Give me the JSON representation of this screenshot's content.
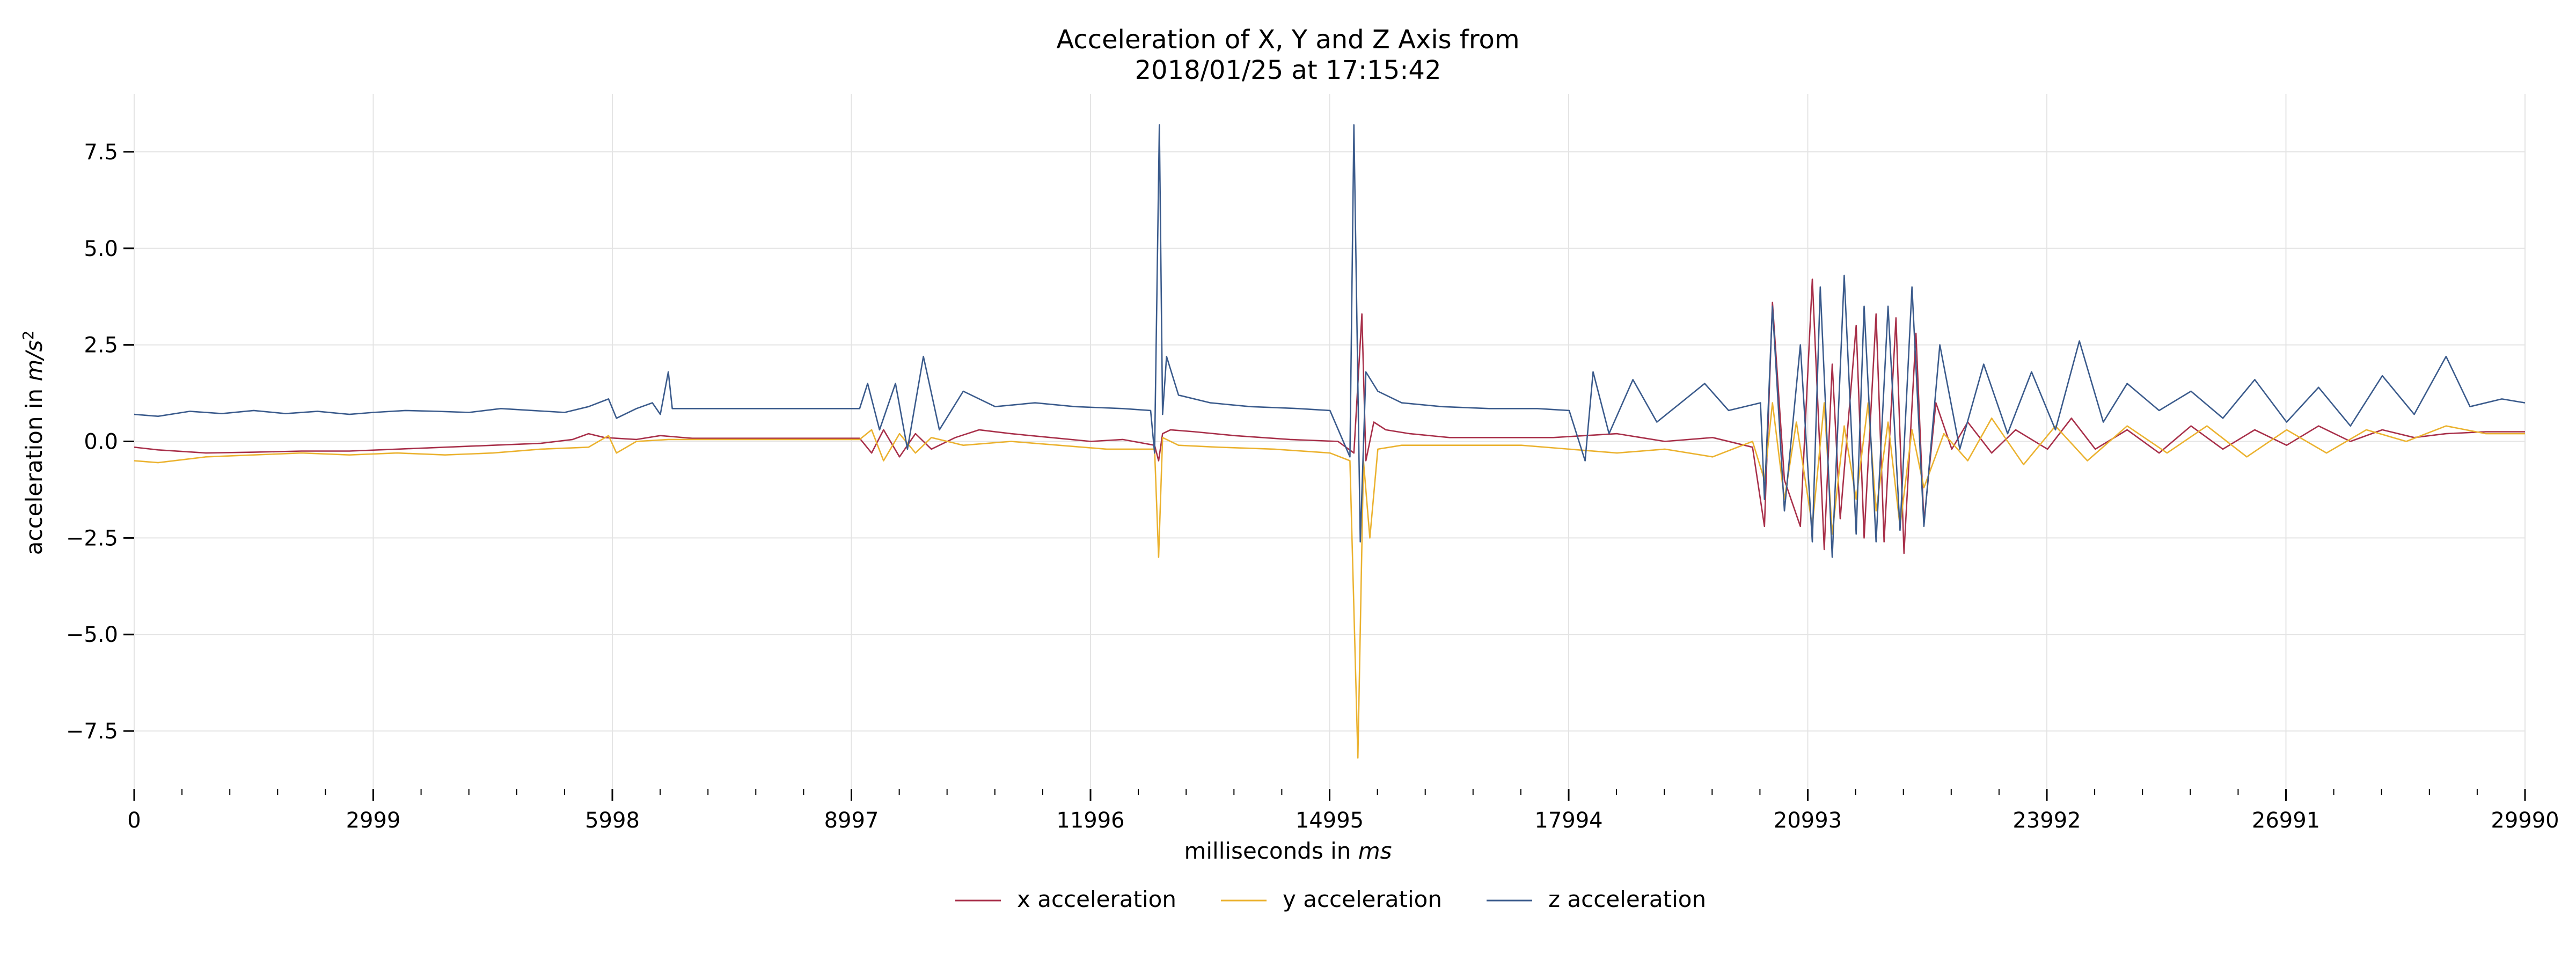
{
  "chart_data": {
    "type": "line",
    "title_lines": [
      "Acceleration of X, Y and Z Axis from",
      "2018/01/25 at 17:15:42"
    ],
    "xlabel_prefix": "milliseconds in ",
    "xlabel_unit": "ms",
    "ylabel_prefix": "acceleration in ",
    "ylabel_unit": "m/s",
    "ylabel_exponent": "2",
    "xlim": [
      0,
      29990
    ],
    "ylim": [
      -9,
      9
    ],
    "x_ticks": [
      0,
      2999,
      5998,
      8997,
      11996,
      14995,
      17994,
      20993,
      23992,
      26991,
      29990
    ],
    "x_tick_labels": [
      "0",
      "2999",
      "5998",
      "8997",
      "11996",
      "14995",
      "17994",
      "20993",
      "23992",
      "26991",
      "29990"
    ],
    "y_ticks": [
      -7.5,
      -5.0,
      -2.5,
      0.0,
      2.5,
      5.0,
      7.5
    ],
    "y_tick_labels": [
      "−7.5",
      "−5.0",
      "−2.5",
      "0.0",
      "2.5",
      "5.0",
      "7.5"
    ],
    "grid": true,
    "legend_position": "bottom-center",
    "series": [
      {
        "name": "x acceleration",
        "color": "#a8304a",
        "points": [
          [
            0,
            -0.15
          ],
          [
            300,
            -0.22
          ],
          [
            900,
            -0.3
          ],
          [
            1500,
            -0.28
          ],
          [
            2100,
            -0.25
          ],
          [
            2700,
            -0.25
          ],
          [
            3300,
            -0.2
          ],
          [
            3900,
            -0.15
          ],
          [
            4500,
            -0.1
          ],
          [
            5100,
            -0.05
          ],
          [
            5500,
            0.05
          ],
          [
            5700,
            0.2
          ],
          [
            5900,
            0.1
          ],
          [
            6300,
            0.05
          ],
          [
            6600,
            0.15
          ],
          [
            7000,
            0.08
          ],
          [
            8000,
            0.08
          ],
          [
            9100,
            0.08
          ],
          [
            9250,
            -0.3
          ],
          [
            9400,
            0.3
          ],
          [
            9600,
            -0.4
          ],
          [
            9800,
            0.2
          ],
          [
            10000,
            -0.2
          ],
          [
            10300,
            0.1
          ],
          [
            10600,
            0.3
          ],
          [
            11000,
            0.2
          ],
          [
            11500,
            0.1
          ],
          [
            12000,
            0.0
          ],
          [
            12400,
            0.05
          ],
          [
            12800,
            -0.1
          ],
          [
            12850,
            -0.5
          ],
          [
            12900,
            0.2
          ],
          [
            13000,
            0.3
          ],
          [
            13300,
            0.25
          ],
          [
            13800,
            0.15
          ],
          [
            14500,
            0.05
          ],
          [
            15100,
            0.0
          ],
          [
            15300,
            -0.3
          ],
          [
            15400,
            3.3
          ],
          [
            15450,
            -0.5
          ],
          [
            15550,
            0.5
          ],
          [
            15700,
            0.3
          ],
          [
            16000,
            0.2
          ],
          [
            16500,
            0.1
          ],
          [
            17200,
            0.1
          ],
          [
            17800,
            0.1
          ],
          [
            18200,
            0.15
          ],
          [
            18600,
            0.2
          ],
          [
            19200,
            0.0
          ],
          [
            19800,
            0.1
          ],
          [
            20300,
            -0.15
          ],
          [
            20450,
            -2.2
          ],
          [
            20550,
            3.6
          ],
          [
            20700,
            -1.0
          ],
          [
            20900,
            -2.2
          ],
          [
            21050,
            4.2
          ],
          [
            21200,
            -2.8
          ],
          [
            21300,
            2.0
          ],
          [
            21400,
            -2.0
          ],
          [
            21600,
            3.0
          ],
          [
            21700,
            -2.5
          ],
          [
            21850,
            3.3
          ],
          [
            21950,
            -2.6
          ],
          [
            22100,
            3.2
          ],
          [
            22200,
            -2.9
          ],
          [
            22350,
            2.8
          ],
          [
            22450,
            -2.1
          ],
          [
            22600,
            1.0
          ],
          [
            22800,
            -0.2
          ],
          [
            23000,
            0.5
          ],
          [
            23300,
            -0.3
          ],
          [
            23600,
            0.3
          ],
          [
            24000,
            -0.2
          ],
          [
            24300,
            0.6
          ],
          [
            24600,
            -0.2
          ],
          [
            25000,
            0.3
          ],
          [
            25400,
            -0.3
          ],
          [
            25800,
            0.4
          ],
          [
            26200,
            -0.2
          ],
          [
            26600,
            0.3
          ],
          [
            27000,
            -0.1
          ],
          [
            27400,
            0.4
          ],
          [
            27800,
            0.0
          ],
          [
            28200,
            0.3
          ],
          [
            28600,
            0.1
          ],
          [
            29000,
            0.2
          ],
          [
            29500,
            0.25
          ],
          [
            29990,
            0.25
          ]
        ]
      },
      {
        "name": "y acceleration",
        "color": "#ebb22f",
        "points": [
          [
            0,
            -0.5
          ],
          [
            300,
            -0.55
          ],
          [
            900,
            -0.4
          ],
          [
            1500,
            -0.35
          ],
          [
            2100,
            -0.3
          ],
          [
            2700,
            -0.35
          ],
          [
            3300,
            -0.3
          ],
          [
            3900,
            -0.35
          ],
          [
            4500,
            -0.3
          ],
          [
            5100,
            -0.2
          ],
          [
            5700,
            -0.15
          ],
          [
            5950,
            0.15
          ],
          [
            6050,
            -0.3
          ],
          [
            6300,
            0.0
          ],
          [
            6700,
            0.05
          ],
          [
            7200,
            0.05
          ],
          [
            8200,
            0.05
          ],
          [
            9100,
            0.05
          ],
          [
            9250,
            0.3
          ],
          [
            9400,
            -0.5
          ],
          [
            9600,
            0.2
          ],
          [
            9800,
            -0.3
          ],
          [
            10000,
            0.1
          ],
          [
            10400,
            -0.1
          ],
          [
            11000,
            0.0
          ],
          [
            11600,
            -0.1
          ],
          [
            12200,
            -0.2
          ],
          [
            12800,
            -0.2
          ],
          [
            12850,
            -3.0
          ],
          [
            12900,
            0.1
          ],
          [
            13100,
            -0.1
          ],
          [
            13600,
            -0.15
          ],
          [
            14300,
            -0.2
          ],
          [
            15000,
            -0.3
          ],
          [
            15250,
            -0.5
          ],
          [
            15350,
            -8.2
          ],
          [
            15420,
            -0.5
          ],
          [
            15500,
            -2.5
          ],
          [
            15600,
            -0.2
          ],
          [
            15900,
            -0.1
          ],
          [
            16500,
            -0.1
          ],
          [
            17400,
            -0.1
          ],
          [
            18000,
            -0.2
          ],
          [
            18600,
            -0.3
          ],
          [
            19200,
            -0.2
          ],
          [
            19800,
            -0.4
          ],
          [
            20300,
            0.0
          ],
          [
            20450,
            -1.0
          ],
          [
            20550,
            1.0
          ],
          [
            20700,
            -1.5
          ],
          [
            20850,
            0.5
          ],
          [
            21050,
            -2.2
          ],
          [
            21200,
            1.0
          ],
          [
            21300,
            -2.4
          ],
          [
            21450,
            0.4
          ],
          [
            21600,
            -1.5
          ],
          [
            21750,
            1.0
          ],
          [
            21850,
            -1.8
          ],
          [
            22000,
            0.5
          ],
          [
            22150,
            -2.2
          ],
          [
            22300,
            0.3
          ],
          [
            22450,
            -1.2
          ],
          [
            22700,
            0.2
          ],
          [
            23000,
            -0.5
          ],
          [
            23300,
            0.6
          ],
          [
            23700,
            -0.6
          ],
          [
            24100,
            0.4
          ],
          [
            24500,
            -0.5
          ],
          [
            25000,
            0.4
          ],
          [
            25500,
            -0.3
          ],
          [
            26000,
            0.4
          ],
          [
            26500,
            -0.4
          ],
          [
            27000,
            0.3
          ],
          [
            27500,
            -0.3
          ],
          [
            28000,
            0.3
          ],
          [
            28500,
            0.0
          ],
          [
            29000,
            0.4
          ],
          [
            29500,
            0.2
          ],
          [
            29990,
            0.2
          ]
        ]
      },
      {
        "name": "z acceleration",
        "color": "#3b5b8c",
        "points": [
          [
            0,
            0.7
          ],
          [
            300,
            0.65
          ],
          [
            700,
            0.78
          ],
          [
            1100,
            0.72
          ],
          [
            1500,
            0.8
          ],
          [
            1900,
            0.72
          ],
          [
            2300,
            0.78
          ],
          [
            2700,
            0.7
          ],
          [
            3000,
            0.75
          ],
          [
            3400,
            0.8
          ],
          [
            3800,
            0.78
          ],
          [
            4200,
            0.75
          ],
          [
            4600,
            0.85
          ],
          [
            5000,
            0.8
          ],
          [
            5400,
            0.75
          ],
          [
            5700,
            0.9
          ],
          [
            5950,
            1.1
          ],
          [
            6050,
            0.6
          ],
          [
            6300,
            0.85
          ],
          [
            6500,
            1.0
          ],
          [
            6600,
            0.7
          ],
          [
            6700,
            1.8
          ],
          [
            6750,
            0.85
          ],
          [
            7100,
            0.85
          ],
          [
            8000,
            0.85
          ],
          [
            9100,
            0.85
          ],
          [
            9200,
            1.5
          ],
          [
            9350,
            0.3
          ],
          [
            9550,
            1.5
          ],
          [
            9700,
            -0.2
          ],
          [
            9900,
            2.2
          ],
          [
            10100,
            0.3
          ],
          [
            10400,
            1.3
          ],
          [
            10800,
            0.9
          ],
          [
            11300,
            1.0
          ],
          [
            11800,
            0.9
          ],
          [
            12400,
            0.85
          ],
          [
            12750,
            0.8
          ],
          [
            12800,
            -0.3
          ],
          [
            12860,
            8.2
          ],
          [
            12900,
            0.7
          ],
          [
            12950,
            2.2
          ],
          [
            13100,
            1.2
          ],
          [
            13500,
            1.0
          ],
          [
            14000,
            0.9
          ],
          [
            14600,
            0.85
          ],
          [
            15000,
            0.8
          ],
          [
            15250,
            -0.4
          ],
          [
            15300,
            8.2
          ],
          [
            15380,
            -2.6
          ],
          [
            15450,
            1.8
          ],
          [
            15600,
            1.3
          ],
          [
            15900,
            1.0
          ],
          [
            16400,
            0.9
          ],
          [
            17000,
            0.85
          ],
          [
            17600,
            0.85
          ],
          [
            18000,
            0.8
          ],
          [
            18200,
            -0.5
          ],
          [
            18300,
            1.8
          ],
          [
            18500,
            0.2
          ],
          [
            18800,
            1.6
          ],
          [
            19100,
            0.5
          ],
          [
            19400,
            1.0
          ],
          [
            19700,
            1.5
          ],
          [
            20000,
            0.8
          ],
          [
            20400,
            1.0
          ],
          [
            20450,
            -1.5
          ],
          [
            20550,
            3.5
          ],
          [
            20700,
            -1.8
          ],
          [
            20900,
            2.5
          ],
          [
            21050,
            -2.6
          ],
          [
            21150,
            4.0
          ],
          [
            21300,
            -3.0
          ],
          [
            21450,
            4.3
          ],
          [
            21600,
            -2.4
          ],
          [
            21700,
            3.5
          ],
          [
            21850,
            -2.6
          ],
          [
            22000,
            3.5
          ],
          [
            22150,
            -2.3
          ],
          [
            22300,
            4.0
          ],
          [
            22450,
            -2.2
          ],
          [
            22650,
            2.5
          ],
          [
            22900,
            -0.2
          ],
          [
            23200,
            2.0
          ],
          [
            23500,
            0.2
          ],
          [
            23800,
            1.8
          ],
          [
            24100,
            0.3
          ],
          [
            24400,
            2.6
          ],
          [
            24700,
            0.5
          ],
          [
            25000,
            1.5
          ],
          [
            25400,
            0.8
          ],
          [
            25800,
            1.3
          ],
          [
            26200,
            0.6
          ],
          [
            26600,
            1.6
          ],
          [
            27000,
            0.5
          ],
          [
            27400,
            1.4
          ],
          [
            27800,
            0.4
          ],
          [
            28200,
            1.7
          ],
          [
            28600,
            0.7
          ],
          [
            29000,
            2.2
          ],
          [
            29300,
            0.9
          ],
          [
            29700,
            1.1
          ],
          [
            29990,
            1.0
          ]
        ]
      }
    ]
  }
}
